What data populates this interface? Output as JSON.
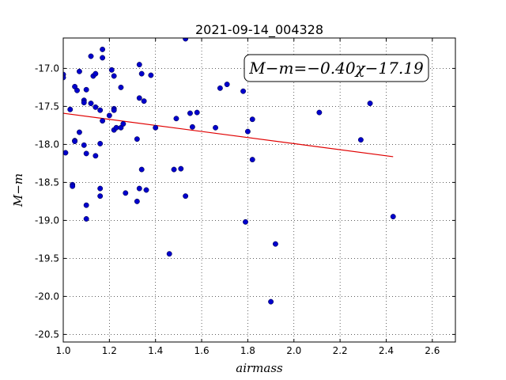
{
  "chart_data": {
    "type": "scatter",
    "title": "2021-09-14_004328",
    "xlabel": "airmass",
    "ylabel": "M−m",
    "xlim": [
      1.0,
      2.7
    ],
    "ylim": [
      -20.6,
      -16.6
    ],
    "xticks": [
      "1.0",
      "1.2",
      "1.4",
      "1.6",
      "1.8",
      "2.0",
      "2.2",
      "2.4",
      "2.6"
    ],
    "yticks": [
      "-17.0",
      "-17.5",
      "-18.0",
      "-18.5",
      "-19.0",
      "-19.5",
      "-20.0",
      "-20.5"
    ],
    "grid": true,
    "point_color": "#0000cc",
    "line_color": "#e00000",
    "annotation": "M−m=−0.40χ−17.19",
    "fit": {
      "slope": -0.4,
      "intercept": -17.19,
      "x_range": [
        1.0,
        2.43
      ]
    },
    "points": [
      [
        1.0,
        -17.08
      ],
      [
        1.0,
        -17.12
      ],
      [
        1.01,
        -18.11
      ],
      [
        1.03,
        -17.54
      ],
      [
        1.04,
        -18.53
      ],
      [
        1.04,
        -18.55
      ],
      [
        1.05,
        -17.24
      ],
      [
        1.05,
        -17.95
      ],
      [
        1.05,
        -17.96
      ],
      [
        1.06,
        -17.29
      ],
      [
        1.07,
        -17.04
      ],
      [
        1.07,
        -17.84
      ],
      [
        1.09,
        -17.42
      ],
      [
        1.09,
        -17.45
      ],
      [
        1.09,
        -18.01
      ],
      [
        1.1,
        -17.28
      ],
      [
        1.1,
        -18.12
      ],
      [
        1.1,
        -18.8
      ],
      [
        1.1,
        -18.98
      ],
      [
        1.12,
        -16.84
      ],
      [
        1.12,
        -17.46
      ],
      [
        1.13,
        -17.1
      ],
      [
        1.14,
        -17.07
      ],
      [
        1.14,
        -17.51
      ],
      [
        1.14,
        -18.15
      ],
      [
        1.16,
        -17.99
      ],
      [
        1.16,
        -18.58
      ],
      [
        1.16,
        -18.68
      ],
      [
        1.16,
        -17.55
      ],
      [
        1.17,
        -16.75
      ],
      [
        1.17,
        -16.86
      ],
      [
        1.17,
        -17.69
      ],
      [
        1.2,
        -17.62
      ],
      [
        1.21,
        -17.02
      ],
      [
        1.22,
        -17.1
      ],
      [
        1.22,
        -17.53
      ],
      [
        1.22,
        -17.55
      ],
      [
        1.22,
        -17.81
      ],
      [
        1.23,
        -17.78
      ],
      [
        1.25,
        -17.25
      ],
      [
        1.25,
        -17.78
      ],
      [
        1.26,
        -17.73
      ],
      [
        1.27,
        -18.64
      ],
      [
        1.32,
        -17.93
      ],
      [
        1.32,
        -18.75
      ],
      [
        1.33,
        -16.95
      ],
      [
        1.33,
        -18.58
      ],
      [
        1.33,
        -17.39
      ],
      [
        1.34,
        -18.33
      ],
      [
        1.34,
        -17.07
      ],
      [
        1.35,
        -17.43
      ],
      [
        1.36,
        -18.6
      ],
      [
        1.38,
        -17.09
      ],
      [
        1.4,
        -17.78
      ],
      [
        1.46,
        -19.44
      ],
      [
        1.48,
        -18.33
      ],
      [
        1.49,
        -17.66
      ],
      [
        1.51,
        -18.32
      ],
      [
        1.53,
        -16.61
      ],
      [
        1.53,
        -18.68
      ],
      [
        1.55,
        -17.59
      ],
      [
        1.56,
        -17.77
      ],
      [
        1.58,
        -17.58
      ],
      [
        1.66,
        -17.78
      ],
      [
        1.68,
        -17.26
      ],
      [
        1.71,
        -17.21
      ],
      [
        1.78,
        -17.3
      ],
      [
        1.79,
        -19.02
      ],
      [
        1.8,
        -17.83
      ],
      [
        1.82,
        -17.67
      ],
      [
        1.82,
        -18.2
      ],
      [
        1.9,
        -20.07
      ],
      [
        1.92,
        -19.31
      ],
      [
        2.11,
        -17.58
      ],
      [
        2.29,
        -17.94
      ],
      [
        2.33,
        -17.46
      ],
      [
        2.43,
        -18.95
      ]
    ]
  }
}
